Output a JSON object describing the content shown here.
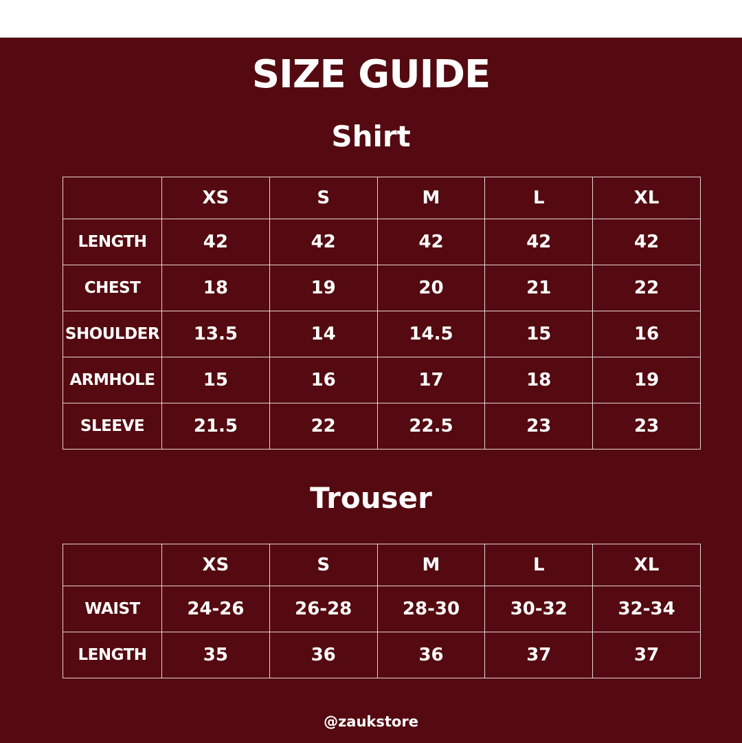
{
  "title": "SIZE GUIDE",
  "shirt": {
    "heading": "Shirt",
    "sizes": [
      "XS",
      "S",
      "M",
      "L",
      "XL"
    ],
    "rows": [
      {
        "label": "LENGTH",
        "values": [
          "42",
          "42",
          "42",
          "42",
          "42"
        ]
      },
      {
        "label": "CHEST",
        "values": [
          "18",
          "19",
          "20",
          "21",
          "22"
        ]
      },
      {
        "label": "SHOULDER",
        "values": [
          "13.5",
          "14",
          "14.5",
          "15",
          "16"
        ]
      },
      {
        "label": "ARMHOLE",
        "values": [
          "15",
          "16",
          "17",
          "18",
          "19"
        ]
      },
      {
        "label": "SLEEVE",
        "values": [
          "21.5",
          "22",
          "22.5",
          "23",
          "23"
        ]
      }
    ]
  },
  "trouser": {
    "heading": "Trouser",
    "sizes": [
      "XS",
      "S",
      "M",
      "L",
      "XL"
    ],
    "rows": [
      {
        "label": "WAIST",
        "values": [
          "24-26",
          "26-28",
          "28-30",
          "30-32",
          "32-34"
        ]
      },
      {
        "label": "LENGTH",
        "values": [
          "35",
          "36",
          "36",
          "37",
          "37"
        ]
      }
    ]
  },
  "footer": "@zaukstore",
  "colors": {
    "background": "#540a10",
    "text": "#ffffff"
  }
}
